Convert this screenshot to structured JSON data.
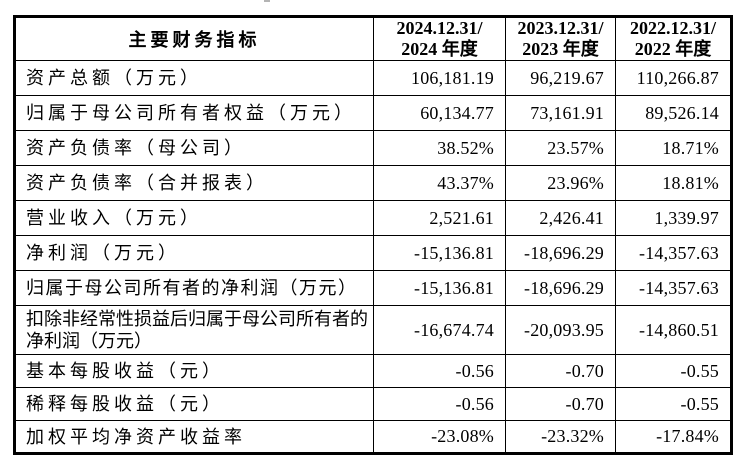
{
  "table": {
    "title": "主要财务指标",
    "header": {
      "indicator_label": "主要财务指标",
      "columns": [
        {
          "line1": "2024.12.31/",
          "line2": "2024 年度"
        },
        {
          "line1": "2023.12.31/",
          "line2": "2023 年度"
        },
        {
          "line1": "2022.12.31/",
          "line2": "2022 年度"
        }
      ]
    },
    "rows": [
      {
        "label": "资产总额（万元）",
        "values": [
          "106,181.19",
          "96,219.67",
          "110,266.87"
        ]
      },
      {
        "label": "归属于母公司所有者权益（万元）",
        "values": [
          "60,134.77",
          "73,161.91",
          "89,526.14"
        ]
      },
      {
        "label": "资产负债率（母公司）",
        "values": [
          "38.52%",
          "23.57%",
          "18.71%"
        ]
      },
      {
        "label": "资产负债率（合并报表）",
        "values": [
          "43.37%",
          "23.96%",
          "18.81%"
        ]
      },
      {
        "label": "营业收入（万元）",
        "values": [
          "2,521.61",
          "2,426.41",
          "1,339.97"
        ]
      },
      {
        "label": "净利润（万元）",
        "values": [
          "-15,136.81",
          "-18,696.29",
          "-14,357.63"
        ]
      },
      {
        "label": "归属于母公司所有者的净利润（万元）",
        "values": [
          "-15,136.81",
          "-18,696.29",
          "-14,357.63"
        ]
      },
      {
        "label": "扣除非经常性损益后归属于母公司所有者的净利润（万元）",
        "values": [
          "-16,674.74",
          "-20,093.95",
          "-14,860.51"
        ]
      },
      {
        "label": "基本每股收益（元）",
        "values": [
          "-0.56",
          "-0.70",
          "-0.55"
        ]
      },
      {
        "label": "稀释每股收益（元）",
        "values": [
          "-0.56",
          "-0.70",
          "-0.55"
        ]
      },
      {
        "label": "加权平均净资产收益率",
        "values": [
          "-23.08%",
          "-23.32%",
          "-17.84%"
        ]
      }
    ],
    "colors": {
      "border": "#000000",
      "text": "#000000",
      "background": "#ffffff"
    }
  }
}
